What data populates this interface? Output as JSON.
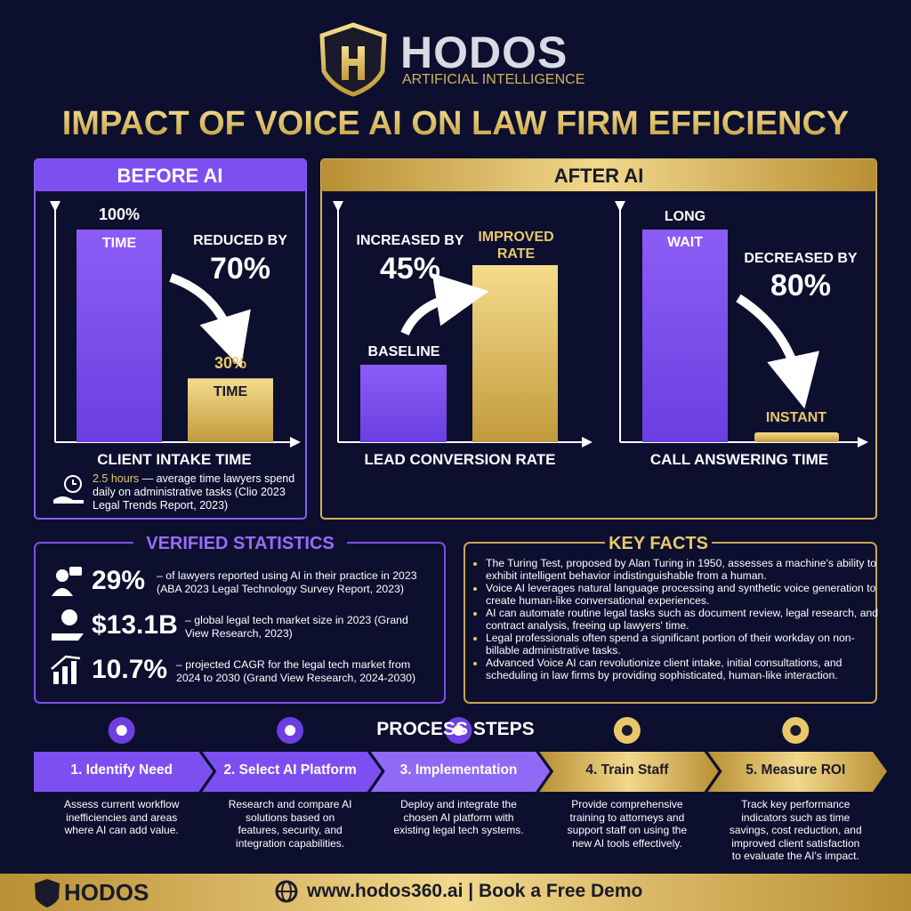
{
  "header": {
    "brand": "HODOS",
    "tagline": "ARTIFICIAL INTELLIGENCE",
    "title": "IMPACT OF VOICE AI ON LAW FIRM EFFICIENCY"
  },
  "before": {
    "heading": "BEFORE AI",
    "bars": {
      "values": [
        100,
        30
      ],
      "value_labels": [
        "100%",
        "30%"
      ],
      "labels": [
        "TIME",
        "TIME"
      ]
    },
    "change": {
      "label": "REDUCED BY",
      "value": "70%"
    },
    "axis_label": "CLIENT INTAKE TIME",
    "note": {
      "highlight": "2.5 hours",
      "text": "— average time lawyers spend daily on administrative tasks (Clio 2023 Legal Trends Report, 2023)"
    }
  },
  "after": {
    "heading": "AFTER AI",
    "lead": {
      "bar_labels": [
        "BASELINE",
        "IMPROVED RATE"
      ],
      "change": {
        "label": "INCREASED BY",
        "value": "45%"
      },
      "axis_label": "LEAD CONVERSION RATE"
    },
    "call": {
      "bar_labels": [
        "LONG",
        "WAIT",
        "INSTANT"
      ],
      "change": {
        "label": "DECREASED BY",
        "value": "80%"
      },
      "axis_label": "CALL ANSWERING TIME"
    }
  },
  "statistics": {
    "title": "VERIFIED STATISTICS",
    "items": [
      {
        "value": "29%",
        "text": "– of lawyers reported using AI in their practice in 2023 (ABA 2023 Legal Technology Survey Report, 2023)"
      },
      {
        "value": "$13.1B",
        "text": "– global legal tech market size in 2023 (Grand View Research, 2023)"
      },
      {
        "value": "10.7%",
        "text": "– projected CAGR for the legal tech market from 2024 to 2030 (Grand View Research, 2024-2030)"
      }
    ]
  },
  "key_facts": {
    "title": "KEY FACTS",
    "items": [
      "The Turing Test, proposed by Alan Turing in 1950, assesses a machine's ability to exhibit intelligent behavior indistinguishable from a human.",
      "Voice AI leverages natural language processing and synthetic voice generation to create human-like conversational experiences.",
      "AI can automate routine legal tasks such as document review, legal research, and contract analysis, freeing up lawyers' time.",
      "Legal professionals often spend a significant portion of their workday on non-billable administrative tasks.",
      "Advanced Voice AI can revolutionize client intake, initial consultations, and scheduling in law firms by providing sophisticated, human-like interaction."
    ]
  },
  "process": {
    "title": "PROCESS STEPS",
    "steps": [
      {
        "title": "1. Identify Need",
        "description": "Assess current workflow inefficiencies and areas where AI can add value."
      },
      {
        "title": "2. Select AI Platform",
        "description": "Research and compare AI solutions based on features, security, and integration capabilities."
      },
      {
        "title": "3. Implementation",
        "description": "Deploy and integrate the chosen AI platform with existing legal tech systems."
      },
      {
        "title": "4. Train Staff",
        "description": "Provide comprehensive training to attorneys and support staff on using the new AI tools effectively."
      },
      {
        "title": "5. Measure ROI",
        "description": "Track key performance indicators such as time savings, cost reduction, and improved client satisfaction to evaluate the AI's impact."
      }
    ]
  },
  "footer": {
    "brand": "HODOS",
    "cta": "www.hodos360.ai | Book a Free Demo"
  }
}
